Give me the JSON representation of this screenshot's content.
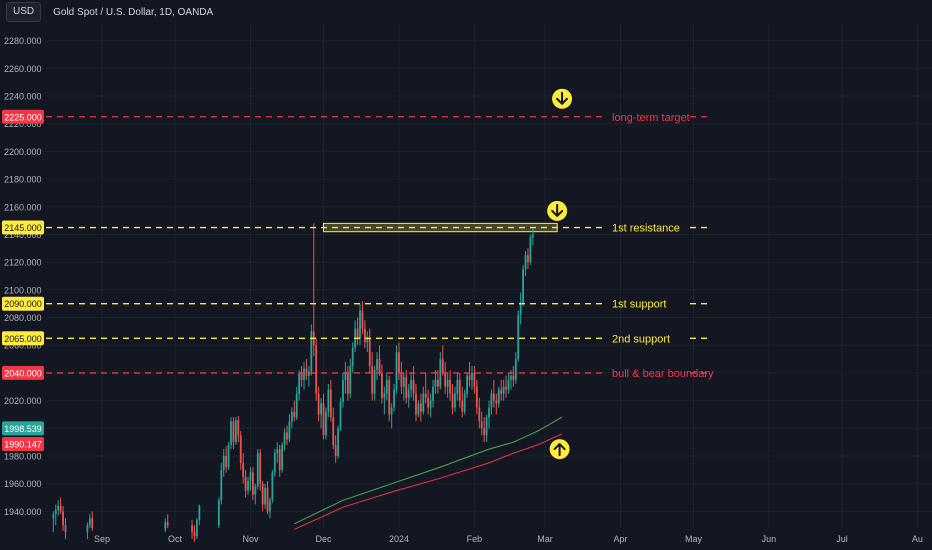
{
  "header": {
    "currency_button": "USD",
    "title": "Gold Spot / U.S. Dollar, 1D, OANDA"
  },
  "colors": {
    "background": "#131722",
    "bull": "#26a69a",
    "bear": "#ef5350",
    "red_level": "#f23645",
    "yellow_level": "#ffeb3b",
    "ma_green": "#4caf50",
    "ma_red": "#f23645",
    "axis_text": "#b2b5be"
  },
  "chart_data": {
    "type": "candlestick",
    "title": "Gold Spot / U.S. Dollar, 1D, OANDA",
    "ylim": [
      1928,
      2292
    ],
    "y_ticks": [
      1940,
      1960,
      1980,
      2000,
      2020,
      2040,
      2060,
      2080,
      2100,
      2120,
      2140,
      2160,
      2180,
      2200,
      2220,
      2240,
      2260,
      2280
    ],
    "y_tick_labels": [
      "1940.000",
      "1960.000",
      "1980.000",
      "2000.000",
      "2020.000",
      "2040.000",
      "2060.000",
      "2080.000",
      "2100.000",
      "2120.000",
      "2140.000",
      "2160.000",
      "2180.000",
      "2200.000",
      "2220.000",
      "2240.000",
      "2260.000",
      "2280.000"
    ],
    "x_labels": [
      "Sep",
      "Oct",
      "Nov",
      "Dec",
      "2024",
      "Feb",
      "Mar",
      "Apr",
      "May",
      "Jun",
      "Jul",
      "Au"
    ],
    "x_label_days": [
      31,
      61,
      92,
      122,
      153,
      184,
      213,
      244,
      274,
      305,
      335,
      366
    ],
    "price_tags": [
      {
        "label": "2225.000",
        "value": 2225,
        "color": "#f23645",
        "text_color": "#ffffff"
      },
      {
        "label": "2145.000",
        "value": 2145,
        "color": "#ffeb3b",
        "text_color": "#131722"
      },
      {
        "label": "2090.000",
        "value": 2090,
        "color": "#ffeb3b",
        "text_color": "#131722"
      },
      {
        "label": "2065.000",
        "value": 2065,
        "color": "#ffeb3b",
        "text_color": "#131722"
      },
      {
        "label": "2040.000",
        "value": 2040,
        "color": "#f23645",
        "text_color": "#ffffff"
      },
      {
        "label": "1998.539",
        "value": 1998.539,
        "color": "#26a69a",
        "text_color": "#ffffff"
      },
      {
        "label": "1990.147",
        "value": 1990.147,
        "color": "#f23645",
        "text_color": "#ffffff"
      }
    ],
    "levels": [
      {
        "name": "long-term target",
        "value": 2225,
        "color": "#f23645"
      },
      {
        "name": "1st resistance",
        "value": 2145,
        "color": "#ffeb3b"
      },
      {
        "name": "1st support",
        "value": 2090,
        "color": "#ffeb3b"
      },
      {
        "name": "2nd support",
        "value": 2065,
        "color": "#ffeb3b"
      },
      {
        "name": "bull & bear boundary",
        "value": 2040,
        "color": "#f23645"
      }
    ],
    "resistance_zone": {
      "start_day": 122,
      "end_day": 218,
      "low": 2142,
      "high": 2148
    },
    "arrows": [
      {
        "direction": "down",
        "day": 220,
        "value": 2238
      },
      {
        "direction": "down",
        "day": 218,
        "value": 2157
      },
      {
        "direction": "up",
        "day": 219,
        "value": 1985
      }
    ],
    "candle_key": [
      "day",
      "open",
      "high",
      "low",
      "close"
    ],
    "candles": [
      [
        11,
        1935,
        1940,
        1925,
        1938
      ],
      [
        12,
        1938,
        1945,
        1930,
        1941
      ],
      [
        13,
        1941,
        1948,
        1937,
        1944
      ],
      [
        14,
        1944,
        1950,
        1938,
        1940
      ],
      [
        15,
        1940,
        1944,
        1926,
        1930
      ],
      [
        16,
        1930,
        1935,
        1920,
        1925
      ],
      [
        25,
        1925,
        1932,
        1920,
        1930
      ],
      [
        26,
        1930,
        1938,
        1928,
        1935
      ],
      [
        27,
        1935,
        1940,
        1926,
        1928
      ],
      [
        57,
        1927,
        1935,
        1925,
        1932
      ],
      [
        58,
        1932,
        1938,
        1928,
        1930
      ],
      [
        68,
        1930,
        1934,
        1920,
        1925
      ],
      [
        69,
        1925,
        1930,
        1918,
        1922
      ],
      [
        70,
        1922,
        1935,
        1920,
        1934
      ],
      [
        71,
        1934,
        1945,
        1930,
        1944
      ],
      [
        79,
        1930,
        1950,
        1928,
        1948
      ],
      [
        80,
        1948,
        1975,
        1945,
        1970
      ],
      [
        81,
        1970,
        1985,
        1965,
        1980
      ],
      [
        82,
        1980,
        1987,
        1968,
        1972
      ],
      [
        83,
        1972,
        1990,
        1970,
        1988
      ],
      [
        84,
        1988,
        2008,
        1985,
        2005
      ],
      [
        85,
        2005,
        2008,
        1985,
        1990
      ],
      [
        86,
        1990,
        2008,
        1988,
        2006
      ],
      [
        87,
        2006,
        2009,
        1990,
        1995
      ],
      [
        88,
        1995,
        1998,
        1970,
        1975
      ],
      [
        89,
        1975,
        1982,
        1960,
        1965
      ],
      [
        90,
        1965,
        1970,
        1950,
        1955
      ],
      [
        91,
        1955,
        1965,
        1952,
        1962
      ],
      [
        92,
        1962,
        1972,
        1955,
        1968
      ],
      [
        93,
        1968,
        1972,
        1948,
        1952
      ],
      [
        94,
        1952,
        1960,
        1945,
        1958
      ],
      [
        95,
        1958,
        1985,
        1956,
        1982
      ],
      [
        96,
        1982,
        1985,
        1955,
        1960
      ],
      [
        97,
        1960,
        1962,
        1940,
        1945
      ],
      [
        98,
        1945,
        1960,
        1942,
        1957
      ],
      [
        99,
        1957,
        1962,
        1938,
        1940
      ],
      [
        100,
        1940,
        1950,
        1935,
        1948
      ],
      [
        101,
        1948,
        1970,
        1946,
        1968
      ],
      [
        102,
        1968,
        1985,
        1965,
        1982
      ],
      [
        103,
        1982,
        1990,
        1975,
        1985
      ],
      [
        104,
        1985,
        1988,
        1965,
        1970
      ],
      [
        105,
        1970,
        1990,
        1968,
        1988
      ],
      [
        106,
        1988,
        2000,
        1984,
        1997
      ],
      [
        107,
        1997,
        2002,
        1988,
        1992
      ],
      [
        108,
        1992,
        2010,
        1990,
        2005
      ],
      [
        109,
        2005,
        2015,
        2000,
        2012
      ],
      [
        110,
        2012,
        2020,
        2005,
        2008
      ],
      [
        111,
        2008,
        2030,
        2006,
        2025
      ],
      [
        112,
        2025,
        2042,
        2020,
        2040
      ],
      [
        113,
        2040,
        2045,
        2030,
        2035
      ],
      [
        114,
        2035,
        2048,
        2028,
        2043
      ],
      [
        115,
        2043,
        2050,
        2035,
        2038
      ],
      [
        116,
        2038,
        2045,
        2030,
        2041
      ],
      [
        117,
        2041,
        2075,
        2038,
        2070
      ],
      [
        118,
        2070,
        2148,
        2052,
        2060
      ],
      [
        119,
        2060,
        2065,
        2020,
        2025
      ],
      [
        120,
        2025,
        2030,
        2005,
        2010
      ],
      [
        121,
        2010,
        2022,
        2000,
        2018
      ],
      [
        122,
        2018,
        2025,
        1992,
        1995
      ],
      [
        123,
        1995,
        2015,
        1992,
        2012
      ],
      [
        124,
        2012,
        2032,
        2008,
        2028
      ],
      [
        125,
        2028,
        2035,
        2005,
        2008
      ],
      [
        126,
        2008,
        2015,
        1985,
        1988
      ],
      [
        127,
        1988,
        1995,
        1975,
        1980
      ],
      [
        128,
        1980,
        2002,
        1978,
        2000
      ],
      [
        129,
        2000,
        2022,
        1998,
        2019
      ],
      [
        130,
        2019,
        2040,
        2015,
        2035
      ],
      [
        131,
        2035,
        2048,
        2025,
        2040
      ],
      [
        132,
        2040,
        2045,
        2020,
        2025
      ],
      [
        133,
        2025,
        2050,
        2022,
        2045
      ],
      [
        134,
        2045,
        2062,
        2040,
        2058
      ],
      [
        135,
        2058,
        2078,
        2055,
        2072
      ],
      [
        136,
        2072,
        2080,
        2060,
        2065
      ],
      [
        137,
        2065,
        2090,
        2060,
        2085
      ],
      [
        138,
        2085,
        2092,
        2068,
        2072
      ],
      [
        139,
        2072,
        2078,
        2058,
        2062
      ],
      [
        140,
        2062,
        2070,
        2055,
        2065
      ],
      [
        141,
        2065,
        2072,
        2040,
        2045
      ],
      [
        142,
        2045,
        2055,
        2020,
        2025
      ],
      [
        143,
        2025,
        2045,
        2020,
        2042
      ],
      [
        144,
        2042,
        2055,
        2035,
        2050
      ],
      [
        145,
        2050,
        2060,
        2038,
        2040
      ],
      [
        146,
        2040,
        2046,
        2018,
        2022
      ],
      [
        147,
        2022,
        2030,
        2010,
        2025
      ],
      [
        148,
        2025,
        2040,
        2020,
        2035
      ],
      [
        149,
        2035,
        2038,
        2005,
        2010
      ],
      [
        150,
        2010,
        2018,
        2000,
        2015
      ],
      [
        151,
        2015,
        2032,
        2012,
        2028
      ],
      [
        152,
        2028,
        2060,
        2025,
        2055
      ],
      [
        153,
        2055,
        2062,
        2035,
        2040
      ],
      [
        154,
        2040,
        2048,
        2025,
        2030
      ],
      [
        155,
        2030,
        2040,
        2020,
        2037
      ],
      [
        156,
        2037,
        2042,
        2018,
        2022
      ],
      [
        157,
        2022,
        2032,
        2015,
        2028
      ],
      [
        158,
        2028,
        2040,
        2022,
        2035
      ],
      [
        159,
        2035,
        2045,
        2020,
        2025
      ],
      [
        160,
        2025,
        2032,
        2005,
        2010
      ],
      [
        161,
        2010,
        2020,
        2008,
        2018
      ],
      [
        162,
        2018,
        2025,
        2005,
        2012
      ],
      [
        163,
        2012,
        2030,
        2010,
        2025
      ],
      [
        164,
        2025,
        2040,
        2018,
        2022
      ],
      [
        165,
        2022,
        2028,
        2010,
        2015
      ],
      [
        166,
        2015,
        2025,
        2008,
        2020
      ],
      [
        167,
        2020,
        2035,
        2015,
        2030
      ],
      [
        168,
        2030,
        2042,
        2025,
        2035
      ],
      [
        169,
        2035,
        2042,
        2025,
        2030
      ],
      [
        170,
        2030,
        2055,
        2028,
        2050
      ],
      [
        171,
        2050,
        2060,
        2038,
        2040
      ],
      [
        172,
        2040,
        2048,
        2025,
        2030
      ],
      [
        173,
        2030,
        2040,
        2022,
        2035
      ],
      [
        174,
        2035,
        2042,
        2020,
        2025
      ],
      [
        175,
        2025,
        2032,
        2010,
        2015
      ],
      [
        176,
        2015,
        2030,
        2012,
        2025
      ],
      [
        177,
        2025,
        2040,
        2020,
        2035
      ],
      [
        178,
        2035,
        2040,
        2015,
        2020
      ],
      [
        179,
        2020,
        2030,
        2008,
        2012
      ],
      [
        180,
        2012,
        2028,
        2010,
        2025
      ],
      [
        181,
        2025,
        2040,
        2022,
        2038
      ],
      [
        182,
        2038,
        2048,
        2030,
        2035
      ],
      [
        183,
        2035,
        2045,
        2028,
        2040
      ],
      [
        184,
        2040,
        2045,
        2025,
        2030
      ],
      [
        185,
        2030,
        2035,
        2010,
        2015
      ],
      [
        186,
        2015,
        2022,
        2000,
        2005
      ],
      [
        187,
        2005,
        2012,
        1995,
        2000
      ],
      [
        188,
        2000,
        2008,
        1990,
        1995
      ],
      [
        189,
        1995,
        2010,
        1990,
        2008
      ],
      [
        190,
        2008,
        2020,
        2000,
        2015
      ],
      [
        191,
        2015,
        2028,
        2010,
        2025
      ],
      [
        192,
        2025,
        2035,
        2015,
        2020
      ],
      [
        193,
        2020,
        2025,
        2010,
        2018
      ],
      [
        194,
        2018,
        2030,
        2015,
        2028
      ],
      [
        195,
        2028,
        2035,
        2020,
        2025
      ],
      [
        196,
        2025,
        2035,
        2020,
        2030
      ],
      [
        197,
        2030,
        2038,
        2022,
        2028
      ],
      [
        198,
        2028,
        2040,
        2025,
        2035
      ],
      [
        199,
        2035,
        2042,
        2028,
        2038
      ],
      [
        200,
        2038,
        2045,
        2030,
        2035
      ],
      [
        201,
        2035,
        2055,
        2032,
        2050
      ],
      [
        202,
        2050,
        2085,
        2048,
        2082
      ],
      [
        203,
        2082,
        2098,
        2075,
        2090
      ],
      [
        204,
        2090,
        2118,
        2088,
        2115
      ],
      [
        205,
        2115,
        2128,
        2110,
        2125
      ],
      [
        206,
        2125,
        2130,
        2115,
        2120
      ],
      [
        207,
        2120,
        2140,
        2118,
        2138
      ],
      [
        208,
        2138,
        2145,
        2132,
        2140
      ]
    ],
    "ma_green": [
      [
        110,
        1931
      ],
      [
        130,
        1948
      ],
      [
        150,
        1960
      ],
      [
        170,
        1972
      ],
      [
        190,
        1985
      ],
      [
        200,
        1990
      ],
      [
        210,
        1998
      ],
      [
        220,
        2008
      ]
    ],
    "ma_red": [
      [
        110,
        1927
      ],
      [
        130,
        1943
      ],
      [
        150,
        1954
      ],
      [
        170,
        1964
      ],
      [
        190,
        1975
      ],
      [
        200,
        1982
      ],
      [
        210,
        1988
      ],
      [
        220,
        1996
      ]
    ]
  }
}
